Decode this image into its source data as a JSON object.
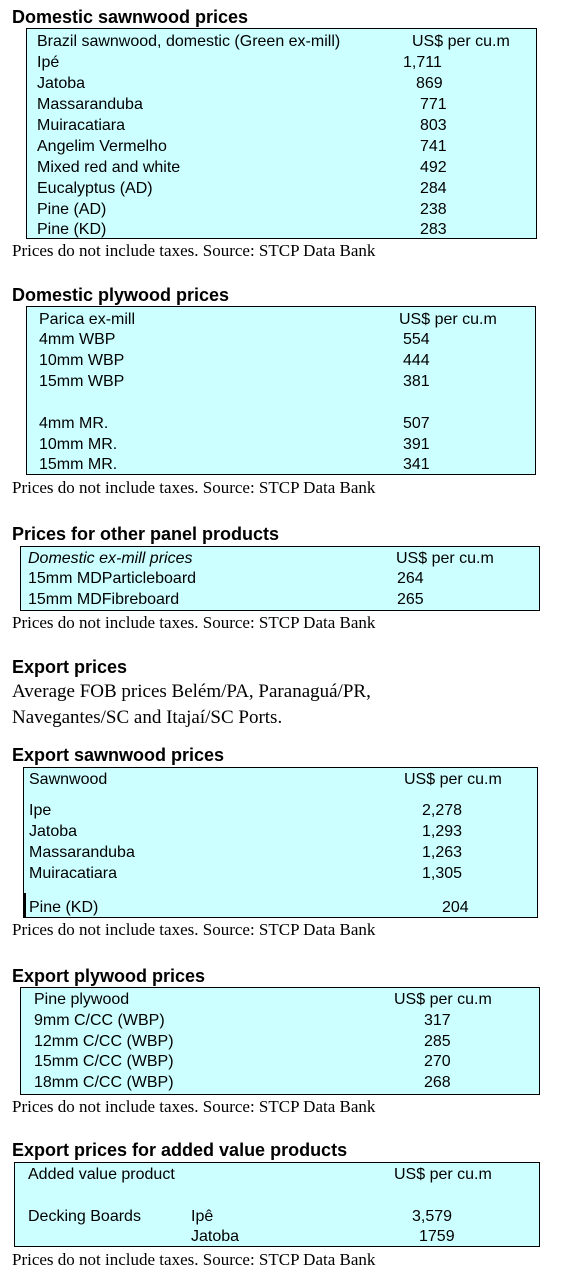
{
  "note": "Prices do not include taxes. Source: STCP Data Bank",
  "domestic_sawnwood": {
    "title": "Domestic sawnwood prices",
    "header": {
      "name": "Brazil sawnwood, domestic (Green ex-mill)",
      "unit": "US$ per cu.m"
    },
    "rows": [
      {
        "name": "Ipé",
        "value": "1,711"
      },
      {
        "name": "Jatoba",
        "value": "869"
      },
      {
        "name": "Massaranduba",
        "value": "771"
      },
      {
        "name": "Muiracatiara",
        "value": "803"
      },
      {
        "name": "Angelim Vermelho",
        "value": "741"
      },
      {
        "name": "Mixed red and white",
        "value": "492"
      },
      {
        "name": "Eucalyptus (AD)",
        "value": "284"
      },
      {
        "name": "Pine (AD)",
        "value": "238"
      },
      {
        "name": "Pine (KD)",
        "value": "283"
      }
    ]
  },
  "domestic_plywood": {
    "title": "Domestic plywood prices",
    "header": {
      "name": "Parica ex-mill",
      "unit": "US$ per cu.m"
    },
    "rows": [
      {
        "name": "4mm WBP",
        "value": "554"
      },
      {
        "name": "10mm WBP",
        "value": "444"
      },
      {
        "name": "15mm WBP",
        "value": "381"
      },
      {
        "name": "4mm MR.",
        "value": "507"
      },
      {
        "name": "10mm MR.",
        "value": "391"
      },
      {
        "name": "15mm MR.",
        "value": "341"
      }
    ]
  },
  "other_panels": {
    "title": "Prices for other panel products",
    "header": {
      "name": "Domestic ex-mill prices",
      "unit": "US$ per cu.m"
    },
    "rows": [
      {
        "name": "15mm MDParticleboard",
        "value": "264"
      },
      {
        "name": "15mm MDFibreboard",
        "value": "265"
      }
    ]
  },
  "export_prices": {
    "title": "Export prices",
    "line1": "Average FOB prices Belém/PA, Paranaguá/PR,",
    "line2": "Navegantes/SC and Itajaí/SC Ports."
  },
  "export_sawnwood": {
    "title": "Export sawnwood prices",
    "header": {
      "name": "Sawnwood",
      "unit": "US$ per cu.m"
    },
    "rows": [
      {
        "name": "Ipe",
        "value": "2,278"
      },
      {
        "name": "Jatoba",
        "value": "1,293"
      },
      {
        "name": "Massaranduba",
        "value": "1,263"
      },
      {
        "name": "Muiracatiara",
        "value": "1,305"
      },
      {
        "name": "Pine (KD)",
        "value": "204"
      }
    ]
  },
  "export_plywood": {
    "title": "Export plywood prices",
    "header": {
      "name": "Pine plywood",
      "unit": "US$ per cu.m"
    },
    "rows": [
      {
        "name": "9mm C/CC (WBP)",
        "value": "317"
      },
      {
        "name": "12mm C/CC (WBP)",
        "value": "285"
      },
      {
        "name": "15mm C/CC (WBP)",
        "value": "270"
      },
      {
        "name": "18mm C/CC (WBP)",
        "value": "268"
      }
    ]
  },
  "added_value": {
    "title": "Export prices for added value products",
    "header": {
      "name": "Added value product",
      "unit": "US$ per cu.m"
    },
    "group": "Decking Boards",
    "rows": [
      {
        "name": "Ipê",
        "value": "3,579"
      },
      {
        "name": "Jatoba",
        "value": "1759"
      }
    ]
  }
}
